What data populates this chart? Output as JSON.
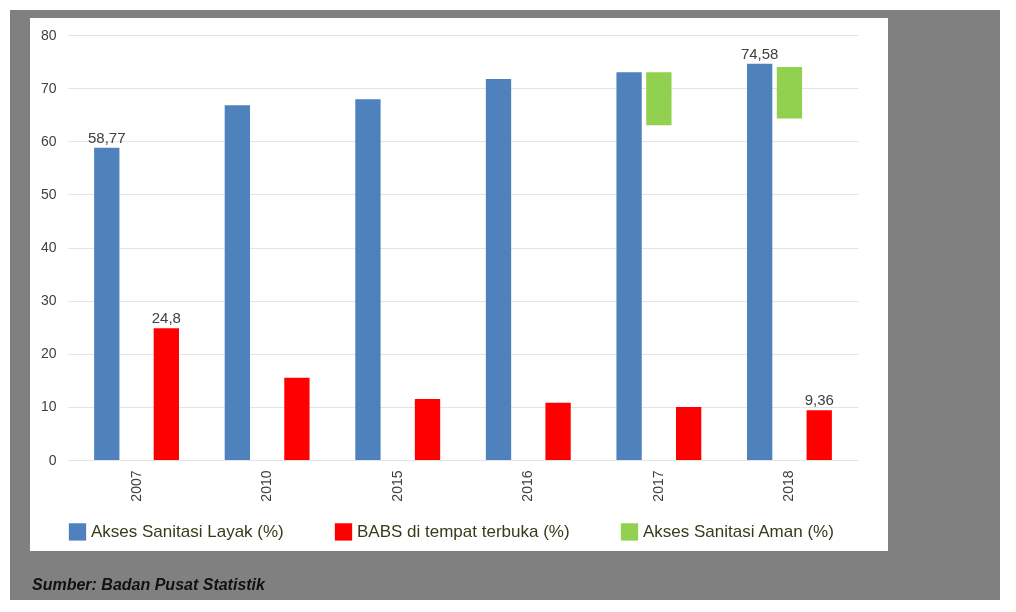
{
  "chart_data": {
    "type": "bar",
    "categories": [
      "2007",
      "2010",
      "2015",
      "2016",
      "2017",
      "2018"
    ],
    "series": [
      {
        "name": "Akses Sanitasi Layak (%)",
        "color": "#4f81bd",
        "values": [
          58.77,
          66.8,
          67.9,
          71.7,
          73.0,
          74.58
        ],
        "value_labels": [
          "58,77",
          null,
          null,
          null,
          null,
          "74,58"
        ]
      },
      {
        "name": "BABS di tempat terbuka (%)",
        "color": "#ff0000",
        "values": [
          24.8,
          15.5,
          11.5,
          10.8,
          10.0,
          9.36
        ],
        "value_labels": [
          "24,8",
          null,
          null,
          null,
          null,
          "9,36"
        ]
      },
      {
        "name": "Akses Sanitasi Aman (%)",
        "color": "#92d050",
        "values": [
          null,
          null,
          null,
          null,
          10.0,
          9.7
        ],
        "base": [
          null,
          null,
          null,
          null,
          63.0,
          64.3
        ]
      }
    ],
    "ylim": [
      0,
      80
    ],
    "yticks": [
      0,
      10,
      20,
      30,
      40,
      50,
      60,
      70,
      80
    ],
    "grid": "y",
    "legend": "bottom",
    "annotations": [
      "Sumber: Badan Pusat Statistik"
    ]
  }
}
